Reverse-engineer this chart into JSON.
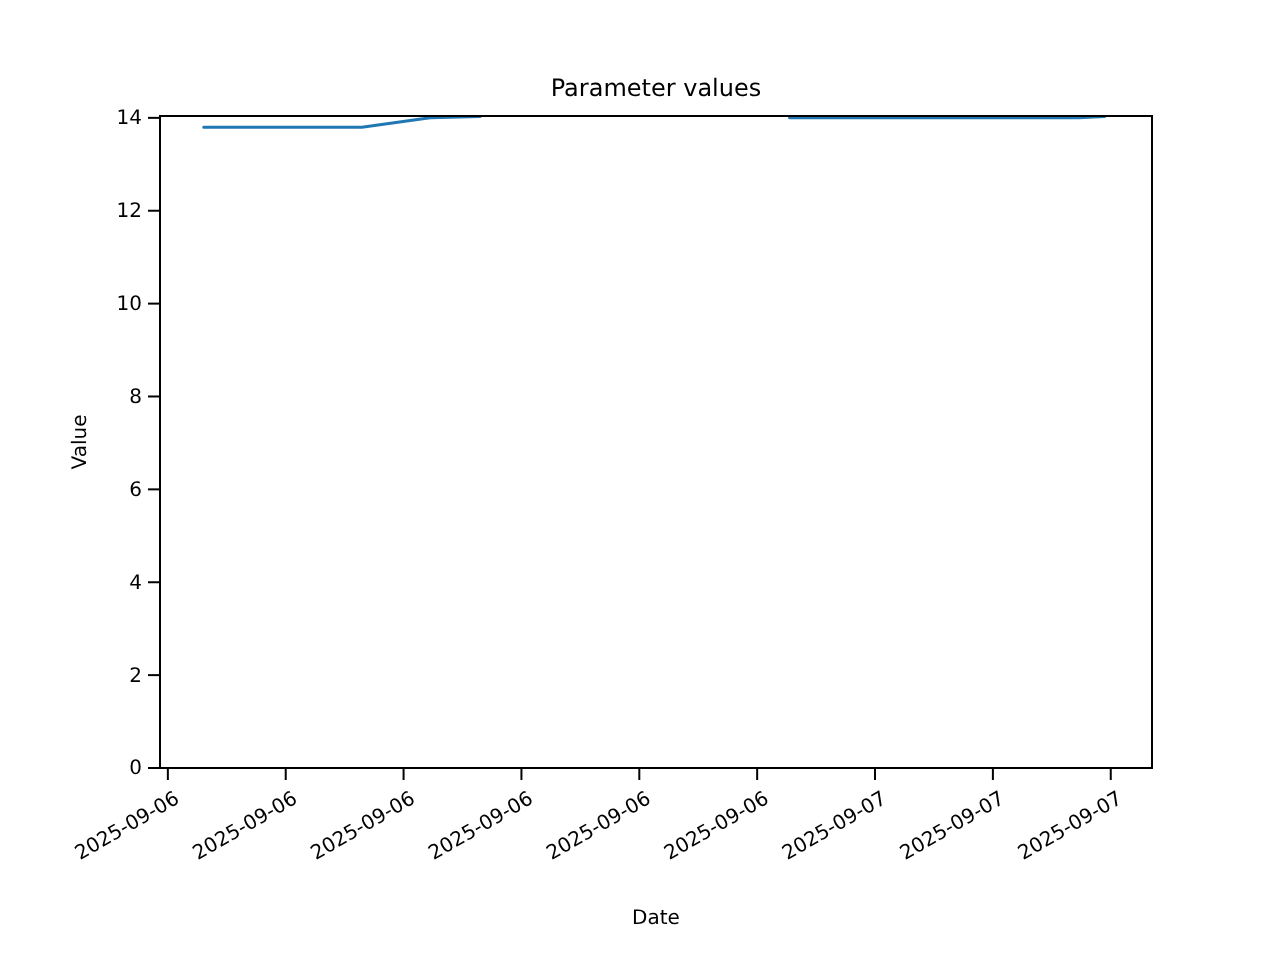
{
  "chart_data": {
    "type": "line",
    "title": "Parameter values",
    "xlabel": "Date",
    "ylabel": "Value",
    "x": [
      "2025-09-06T01:13",
      "2025-09-06T06:35",
      "2025-09-06T08:54",
      "2025-09-06T10:36",
      "2025-09-06T15:00",
      "2025-09-06T21:06",
      "2025-09-07T06:54",
      "2025-09-07T07:48"
    ],
    "series": [
      {
        "color": "#1f77b4",
        "values": [
          13.8,
          13.8,
          14.0,
          14.03,
          null,
          14.0,
          14.0,
          14.03
        ]
      }
    ],
    "xlim": [
      "2025-09-05T23:44",
      "2025-09-07T09:24"
    ],
    "xticks": [
      {
        "value": "2025-09-06T00:00",
        "label": "2025-09-06"
      },
      {
        "value": "2025-09-06T04:00",
        "label": "2025-09-06"
      },
      {
        "value": "2025-09-06T08:00",
        "label": "2025-09-06"
      },
      {
        "value": "2025-09-06T12:00",
        "label": "2025-09-06"
      },
      {
        "value": "2025-09-06T16:00",
        "label": "2025-09-06"
      },
      {
        "value": "2025-09-06T20:00",
        "label": "2025-09-06"
      },
      {
        "value": "2025-09-07T00:00",
        "label": "2025-09-07"
      },
      {
        "value": "2025-09-07T04:00",
        "label": "2025-09-07"
      },
      {
        "value": "2025-09-07T08:00",
        "label": "2025-09-07"
      }
    ],
    "ylim": [
      0,
      14.04
    ],
    "yticks": [
      0,
      2,
      4,
      6,
      8,
      10,
      12,
      14
    ],
    "grid": false,
    "line_style": "solid"
  }
}
